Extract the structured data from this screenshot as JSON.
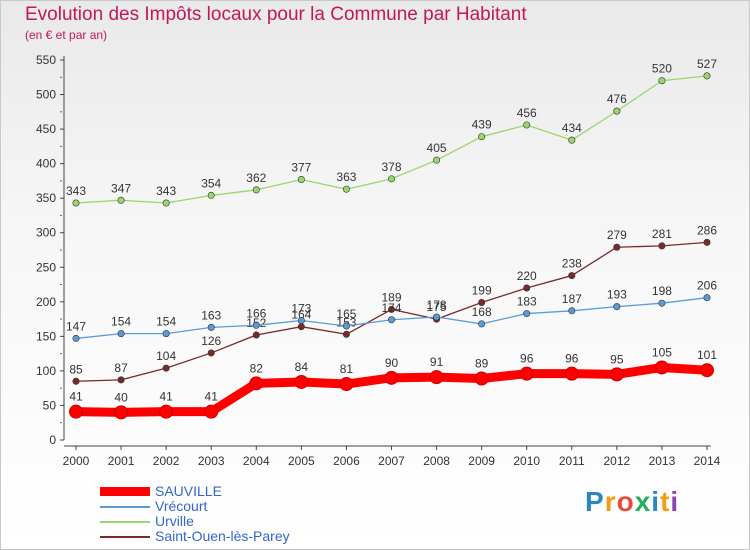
{
  "header": {
    "title": "Evolution des Impôts locaux pour la Commune par Habitant",
    "subtitle": "(en € et par an)"
  },
  "logo": {
    "text": "Proxiti",
    "colors": [
      "#2e86c1",
      "#f39c12",
      "#e74c3c",
      "#27ae60",
      "#2e86c1",
      "#f39c12",
      "#8e44ad"
    ]
  },
  "chart_data": {
    "type": "line",
    "x": [
      "2000",
      "2001",
      "2002",
      "2003",
      "2004",
      "2005",
      "2006",
      "2007",
      "2008",
      "2009",
      "2010",
      "2011",
      "2012",
      "2013",
      "2014"
    ],
    "ylim": [
      0,
      550
    ],
    "yticks": [
      0,
      50,
      100,
      150,
      200,
      250,
      300,
      350,
      400,
      450,
      500,
      550
    ],
    "grid": false,
    "legend_position": "bottom-left",
    "series": [
      {
        "name": "Urville",
        "color": "#99d66b",
        "values": [
          343,
          347,
          343,
          354,
          362,
          377,
          363,
          378,
          405,
          439,
          456,
          434,
          476,
          520,
          527
        ]
      },
      {
        "name": "Saint-Ouen-lès-Parey",
        "color": "#7a2a2a",
        "values": [
          85,
          87,
          104,
          126,
          152,
          164,
          153,
          189,
          175,
          199,
          220,
          238,
          279,
          281,
          286
        ]
      },
      {
        "name": "Vrécourt",
        "color": "#5b9bd5",
        "values": [
          147,
          154,
          154,
          163,
          166,
          173,
          165,
          174,
          178,
          168,
          183,
          187,
          193,
          198,
          206
        ]
      },
      {
        "name": "SAUVILLE",
        "color": "#ff0000",
        "values": [
          41,
          40,
          41,
          41,
          82,
          84,
          81,
          90,
          91,
          89,
          96,
          96,
          95,
          105,
          101
        ]
      }
    ],
    "legend_order": [
      "SAUVILLE",
      "Vrécourt",
      "Urville",
      "Saint-Ouen-lès-Parey"
    ]
  }
}
